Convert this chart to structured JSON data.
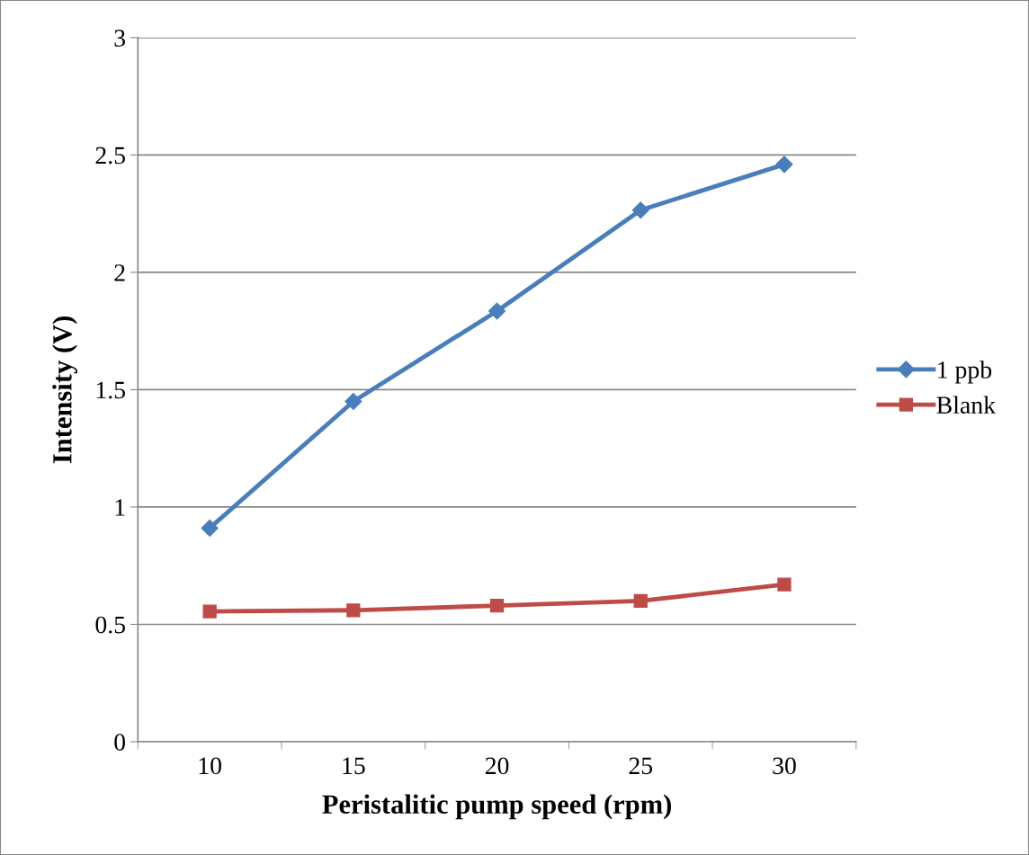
{
  "chart_data": {
    "type": "line",
    "xlabel": "Peristalitic pump speed (rpm)",
    "ylabel": "Intensity (V)",
    "categories": [
      "10",
      "15",
      "20",
      "25",
      "30"
    ],
    "series": [
      {
        "name": "1 ppb",
        "color": "#4a7ebb",
        "marker": "diamond",
        "values": [
          0.91,
          1.45,
          1.835,
          2.265,
          2.46
        ]
      },
      {
        "name": "Blank",
        "color": "#be4b48",
        "marker": "square",
        "values": [
          0.555,
          0.56,
          0.58,
          0.6,
          0.67
        ]
      }
    ],
    "ylim": [
      0,
      3
    ],
    "yticks": [
      0,
      0.5,
      1,
      1.5,
      2,
      2.5,
      3
    ],
    "grid": "y",
    "legend": "right",
    "line_style": "solid"
  }
}
